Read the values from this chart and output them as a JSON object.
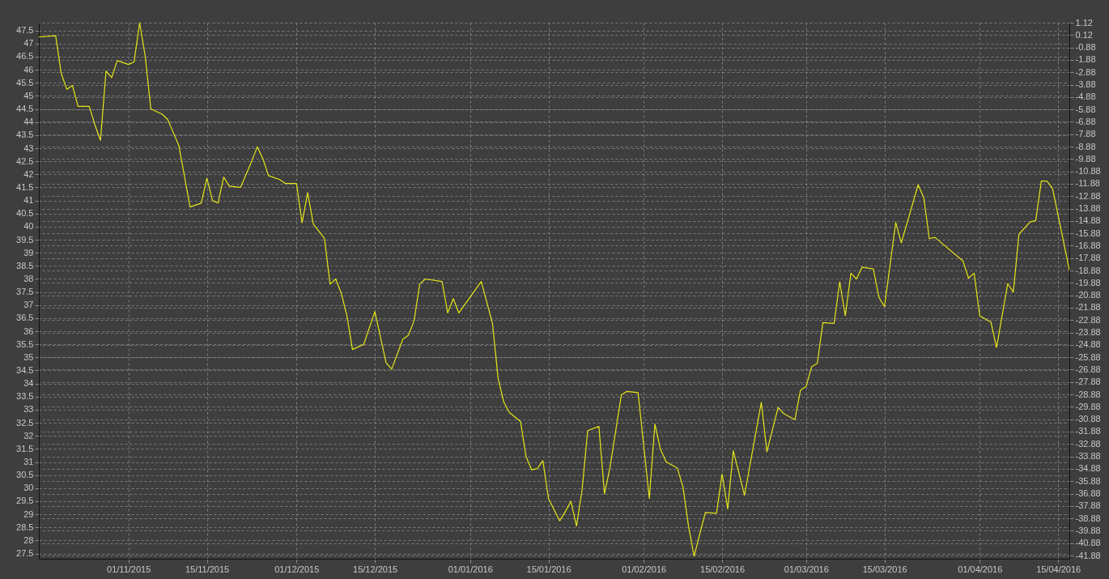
{
  "chart_data": {
    "type": "line",
    "x": [
      "2015-10-16",
      "2015-10-19",
      "2015-10-20",
      "2015-10-21",
      "2015-10-22",
      "2015-10-23",
      "2015-10-25",
      "2015-10-26",
      "2015-10-27",
      "2015-10-28",
      "2015-10-29",
      "2015-10-30",
      "2015-11-01",
      "2015-11-02",
      "2015-11-03",
      "2015-11-04",
      "2015-11-05",
      "2015-11-07",
      "2015-11-08",
      "2015-11-09",
      "2015-11-10",
      "2015-11-12",
      "2015-11-14",
      "2015-11-15",
      "2015-11-16",
      "2015-11-17",
      "2015-11-18",
      "2015-11-19",
      "2015-11-21",
      "2015-11-23",
      "2015-11-24",
      "2015-11-25",
      "2015-11-26",
      "2015-11-28",
      "2015-11-29",
      "2015-12-01",
      "2015-12-02",
      "2015-12-03",
      "2015-12-04",
      "2015-12-06",
      "2015-12-07",
      "2015-12-08",
      "2015-12-09",
      "2015-12-10",
      "2015-12-11",
      "2015-12-13",
      "2015-12-15",
      "2015-12-17",
      "2015-12-18",
      "2015-12-20",
      "2015-12-21",
      "2015-12-22",
      "2015-12-23",
      "2015-12-24",
      "2015-12-27",
      "2015-12-28",
      "2015-12-29",
      "2015-12-30",
      "2016-01-03",
      "2016-01-05",
      "2016-01-06",
      "2016-01-07",
      "2016-01-08",
      "2016-01-10",
      "2016-01-11",
      "2016-01-12",
      "2016-01-13",
      "2016-01-14",
      "2016-01-15",
      "2016-01-17",
      "2016-01-18",
      "2016-01-19",
      "2016-01-20",
      "2016-01-21",
      "2016-01-22",
      "2016-01-24",
      "2016-01-25",
      "2016-01-26",
      "2016-01-28",
      "2016-01-29",
      "2016-01-31",
      "2016-02-02",
      "2016-02-03",
      "2016-02-04",
      "2016-02-05",
      "2016-02-07",
      "2016-02-08",
      "2016-02-09",
      "2016-02-10",
      "2016-02-12",
      "2016-02-14",
      "2016-02-15",
      "2016-02-16",
      "2016-02-17",
      "2016-02-19",
      "2016-02-22",
      "2016-02-23",
      "2016-02-25",
      "2016-02-26",
      "2016-02-28",
      "2016-02-29",
      "2016-03-01",
      "2016-03-02",
      "2016-03-03",
      "2016-03-04",
      "2016-03-06",
      "2016-03-07",
      "2016-03-08",
      "2016-03-09",
      "2016-03-10",
      "2016-03-11",
      "2016-03-13",
      "2016-03-14",
      "2016-03-15",
      "2016-03-17",
      "2016-03-18",
      "2016-03-21",
      "2016-03-22",
      "2016-03-23",
      "2016-03-24",
      "2016-03-29",
      "2016-03-30",
      "2016-03-31",
      "2016-04-01",
      "2016-04-03",
      "2016-04-04",
      "2016-04-06",
      "2016-04-07",
      "2016-04-08",
      "2016-04-10",
      "2016-04-11",
      "2016-04-12",
      "2016-04-13",
      "2016-04-14",
      "2016-04-17"
    ],
    "series": [
      {
        "color": "#e6e619",
        "values": [
          47.25,
          47.3,
          45.85,
          45.25,
          45.4,
          44.6,
          44.6,
          43.9,
          43.3,
          45.95,
          45.7,
          46.35,
          46.2,
          46.3,
          47.8,
          46.5,
          44.5,
          44.3,
          44.1,
          43.6,
          43.1,
          40.75,
          40.9,
          41.85,
          41.0,
          40.9,
          41.9,
          41.55,
          41.5,
          42.5,
          43.05,
          42.6,
          41.95,
          41.8,
          41.65,
          41.65,
          40.15,
          41.3,
          40.1,
          39.55,
          37.8,
          38.0,
          37.45,
          36.6,
          35.3,
          35.5,
          36.75,
          34.8,
          34.55,
          35.7,
          35.85,
          36.4,
          37.8,
          38.0,
          37.9,
          36.7,
          37.25,
          36.7,
          37.9,
          36.3,
          34.2,
          33.3,
          32.9,
          32.55,
          31.2,
          30.7,
          30.75,
          31.05,
          29.6,
          28.75,
          29.1,
          29.5,
          28.55,
          29.94,
          32.2,
          32.36,
          29.78,
          30.82,
          33.56,
          33.7,
          33.65,
          29.61,
          32.45,
          31.48,
          31.01,
          30.77,
          30.06,
          28.55,
          27.4,
          29.07,
          29.04,
          30.54,
          29.21,
          31.43,
          29.73,
          33.28,
          31.39,
          33.09,
          32.85,
          32.62,
          33.75,
          33.89,
          34.65,
          34.77,
          36.33,
          36.3,
          37.89,
          36.59,
          38.22,
          38.0,
          38.45,
          38.38,
          37.3,
          36.94,
          40.16,
          39.38,
          41.6,
          41.12,
          39.54,
          39.59,
          38.69,
          38.03,
          38.22,
          36.59,
          36.35,
          35.38,
          37.82,
          37.5,
          39.71,
          40.18,
          40.23,
          41.74,
          41.74,
          41.46,
          38.35
        ]
      }
    ],
    "xlim": [
      "2015-10-16",
      "2016-04-17"
    ],
    "xticks": [
      {
        "value": "2015-11-01",
        "label": "01/11/2015"
      },
      {
        "value": "2015-11-15",
        "label": "15/11/2015"
      },
      {
        "value": "2015-12-01",
        "label": "01/12/2015"
      },
      {
        "value": "2015-12-15",
        "label": "15/12/2015"
      },
      {
        "value": "2016-01-01",
        "label": "01/01/2016"
      },
      {
        "value": "2016-01-15",
        "label": "15/01/2016"
      },
      {
        "value": "2016-02-01",
        "label": "01/02/2016"
      },
      {
        "value": "2016-02-15",
        "label": "15/02/2016"
      },
      {
        "value": "2016-03-01",
        "label": "01/03/2016"
      },
      {
        "value": "2016-03-15",
        "label": "15/03/2016"
      },
      {
        "value": "2016-04-01",
        "label": "01/04/2016"
      },
      {
        "value": "2016-04-15",
        "label": "15/04/2016"
      }
    ],
    "ylim": [
      27.3,
      47.8
    ],
    "yticks": [
      27.5,
      28,
      28.5,
      29,
      29.5,
      30,
      30.5,
      31,
      31.5,
      32,
      32.5,
      33,
      33.5,
      34,
      34.5,
      35,
      35.5,
      36,
      36.5,
      37,
      37.5,
      38,
      38.5,
      39,
      39.5,
      40,
      40.5,
      41,
      41.5,
      42,
      42.5,
      43,
      43.5,
      44,
      44.5,
      45,
      45.5,
      46,
      46.5,
      47,
      47.5
    ],
    "y2lim": [
      -42.14,
      1.12
    ],
    "y2ticks": [
      1.12,
      0.12,
      -0.88,
      -1.88,
      -2.88,
      -3.88,
      -4.88,
      -5.88,
      -6.88,
      -7.88,
      -8.88,
      -9.88,
      -10.88,
      -11.88,
      -12.88,
      -13.88,
      -14.88,
      -15.88,
      -16.88,
      -17.88,
      -18.88,
      -19.88,
      -20.88,
      -21.88,
      -22.88,
      -23.88,
      -24.88,
      -25.88,
      -26.88,
      -27.88,
      -28.88,
      -29.88,
      -30.88,
      -31.88,
      -32.88,
      -33.88,
      -34.88,
      -35.88,
      -36.88,
      -37.88,
      -38.88,
      -39.88,
      -40.88,
      -41.88
    ],
    "grid": true
  }
}
